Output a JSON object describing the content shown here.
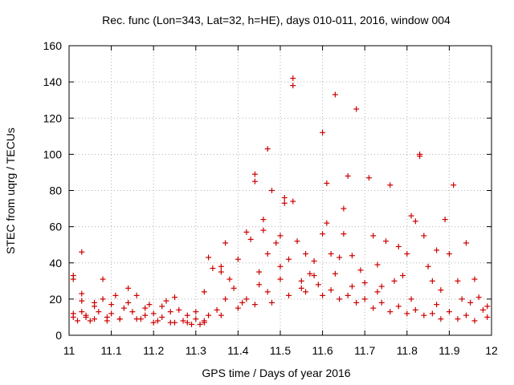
{
  "chart_data": {
    "type": "scatter",
    "title": "Rec. func (Lon=343, Lat=32, h=HE), days 010-011, 2016, window 004",
    "xlabel": "GPS time / Days of year 2016",
    "ylabel": "STEC from uqrg / TECUs",
    "xlim": [
      11,
      12
    ],
    "ylim": [
      0,
      160
    ],
    "x_ticks": [
      11,
      11.1,
      11.2,
      11.3,
      11.4,
      11.5,
      11.6,
      11.7,
      11.8,
      11.9,
      12
    ],
    "x_tick_labels": [
      "11",
      "11.1",
      "11.2",
      "11.3",
      "11.4",
      "11.5",
      "11.6",
      "11.7",
      "11.8",
      "11.9",
      "12"
    ],
    "y_ticks": [
      0,
      20,
      40,
      60,
      80,
      100,
      120,
      140,
      160
    ],
    "y_tick_labels": [
      "0",
      "20",
      "40",
      "60",
      "80",
      "100",
      "120",
      "140",
      "160"
    ],
    "grid": true,
    "marker": "+",
    "color": "#cc0000",
    "series": [
      {
        "name": "STEC",
        "points": [
          [
            11.01,
            33
          ],
          [
            11.01,
            31
          ],
          [
            11.01,
            12
          ],
          [
            11.01,
            10
          ],
          [
            11.03,
            46
          ],
          [
            11.03,
            23
          ],
          [
            11.03,
            19
          ],
          [
            11.03,
            13
          ],
          [
            11.04,
            11
          ],
          [
            11.04,
            10
          ],
          [
            11.06,
            9
          ],
          [
            11.06,
            16
          ],
          [
            11.06,
            18
          ],
          [
            11.07,
            13
          ],
          [
            11.08,
            31
          ],
          [
            11.08,
            20
          ],
          [
            11.09,
            10
          ],
          [
            11.1,
            17
          ],
          [
            11.1,
            12
          ],
          [
            11.11,
            22
          ],
          [
            11.12,
            9
          ],
          [
            11.13,
            15
          ],
          [
            11.14,
            26
          ],
          [
            11.14,
            18
          ],
          [
            11.15,
            13
          ],
          [
            11.16,
            22
          ],
          [
            11.17,
            9
          ],
          [
            11.18,
            15
          ],
          [
            11.18,
            11
          ],
          [
            11.19,
            17
          ],
          [
            11.2,
            12
          ],
          [
            11.21,
            8
          ],
          [
            11.22,
            16
          ],
          [
            11.22,
            10
          ],
          [
            11.23,
            19
          ],
          [
            11.24,
            13
          ],
          [
            11.25,
            21
          ],
          [
            11.25,
            7
          ],
          [
            11.26,
            14
          ],
          [
            11.27,
            8
          ],
          [
            11.28,
            11
          ],
          [
            11.29,
            6
          ],
          [
            11.3,
            13
          ],
          [
            11.3,
            9
          ],
          [
            11.31,
            6
          ],
          [
            11.32,
            24
          ],
          [
            11.32,
            8
          ],
          [
            11.33,
            43
          ],
          [
            11.33,
            11
          ],
          [
            11.34,
            37
          ],
          [
            11.35,
            14
          ],
          [
            11.36,
            38
          ],
          [
            11.36,
            35
          ],
          [
            11.37,
            51
          ],
          [
            11.37,
            20
          ],
          [
            11.38,
            31
          ],
          [
            11.39,
            26
          ],
          [
            11.4,
            42
          ],
          [
            11.41,
            18
          ],
          [
            11.42,
            57
          ],
          [
            11.43,
            53
          ],
          [
            11.44,
            89
          ],
          [
            11.44,
            85
          ],
          [
            11.45,
            35
          ],
          [
            11.46,
            64
          ],
          [
            11.46,
            58
          ],
          [
            11.47,
            103
          ],
          [
            11.47,
            45
          ],
          [
            11.48,
            80
          ],
          [
            11.49,
            51
          ],
          [
            11.5,
            55
          ],
          [
            11.5,
            38
          ],
          [
            11.51,
            73
          ],
          [
            11.51,
            76
          ],
          [
            11.52,
            42
          ],
          [
            11.53,
            142
          ],
          [
            11.53,
            138
          ],
          [
            11.53,
            74
          ],
          [
            11.54,
            52
          ],
          [
            11.55,
            30
          ],
          [
            11.56,
            45
          ],
          [
            11.57,
            34
          ],
          [
            11.58,
            41
          ],
          [
            11.59,
            28
          ],
          [
            11.6,
            112
          ],
          [
            11.6,
            56
          ],
          [
            11.61,
            84
          ],
          [
            11.61,
            62
          ],
          [
            11.62,
            45
          ],
          [
            11.63,
            133
          ],
          [
            11.63,
            34
          ],
          [
            11.64,
            43
          ],
          [
            11.65,
            70
          ],
          [
            11.65,
            56
          ],
          [
            11.66,
            88
          ],
          [
            11.67,
            44
          ],
          [
            11.68,
            125
          ],
          [
            11.69,
            36
          ],
          [
            11.7,
            29
          ],
          [
            11.71,
            87
          ],
          [
            11.72,
            55
          ],
          [
            11.73,
            39
          ],
          [
            11.74,
            27
          ],
          [
            11.75,
            52
          ],
          [
            11.76,
            83
          ],
          [
            11.77,
            30
          ],
          [
            11.78,
            49
          ],
          [
            11.79,
            33
          ],
          [
            11.8,
            45
          ],
          [
            11.81,
            66
          ],
          [
            11.82,
            63
          ],
          [
            11.83,
            100
          ],
          [
            11.83,
            99
          ],
          [
            11.84,
            55
          ],
          [
            11.85,
            38
          ],
          [
            11.86,
            30
          ],
          [
            11.87,
            47
          ],
          [
            11.88,
            25
          ],
          [
            11.89,
            64
          ],
          [
            11.9,
            45
          ],
          [
            11.91,
            83
          ],
          [
            11.92,
            30
          ],
          [
            11.93,
            20
          ],
          [
            11.94,
            51
          ],
          [
            11.95,
            18
          ],
          [
            11.96,
            31
          ],
          [
            11.97,
            21
          ],
          [
            11.98,
            14
          ],
          [
            11.99,
            16
          ],
          [
            11.99,
            10
          ],
          [
            11.02,
            8
          ],
          [
            11.05,
            8
          ],
          [
            11.09,
            8
          ],
          [
            11.12,
            9
          ],
          [
            11.16,
            9
          ],
          [
            11.2,
            7
          ],
          [
            11.24,
            7
          ],
          [
            11.28,
            7
          ],
          [
            11.32,
            7
          ],
          [
            11.36,
            11
          ],
          [
            11.4,
            15
          ],
          [
            11.44,
            17
          ],
          [
            11.48,
            18
          ],
          [
            11.52,
            22
          ],
          [
            11.56,
            24
          ],
          [
            11.6,
            22
          ],
          [
            11.64,
            20
          ],
          [
            11.68,
            18
          ],
          [
            11.72,
            15
          ],
          [
            11.76,
            13
          ],
          [
            11.8,
            12
          ],
          [
            11.84,
            11
          ],
          [
            11.88,
            9
          ],
          [
            11.92,
            9
          ],
          [
            11.96,
            8
          ],
          [
            11.42,
            20
          ],
          [
            11.47,
            24
          ],
          [
            11.5,
            31
          ],
          [
            11.55,
            26
          ],
          [
            11.62,
            25
          ],
          [
            11.66,
            22
          ],
          [
            11.7,
            20
          ],
          [
            11.74,
            18
          ],
          [
            11.78,
            16
          ],
          [
            11.82,
            14
          ],
          [
            11.86,
            12
          ],
          [
            11.9,
            13
          ],
          [
            11.94,
            11
          ],
          [
            11.45,
            28
          ],
          [
            11.58,
            33
          ],
          [
            11.67,
            27
          ],
          [
            11.73,
            24
          ],
          [
            11.81,
            20
          ],
          [
            11.87,
            17
          ]
        ]
      }
    ]
  }
}
